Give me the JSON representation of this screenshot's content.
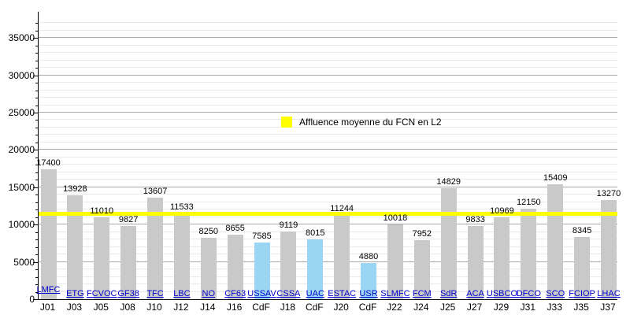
{
  "chart_data": {
    "type": "bar",
    "title": "",
    "xlabel": "",
    "ylabel": "",
    "ylim": [
      0,
      38500
    ],
    "y_major_step": 5000,
    "y_minor_step": 1000,
    "y_tick_labels": [
      "0",
      "5000",
      "10000",
      "15000",
      "20000",
      "25000",
      "30000",
      "35000"
    ],
    "grid": "major and minor horizontal gridlines",
    "legend": {
      "label": "Affluence moyenne du FCN en L2",
      "swatch_color": "#ffff00"
    },
    "average_line": {
      "value": 11439,
      "color": "#ffff00"
    },
    "colors": {
      "league_bar": "#c9c9c9",
      "cup_bar": "#9ad6f4",
      "team_link": "#0000cc",
      "value_text": "#000000",
      "major_grid": "#a8a8a8",
      "minor_grid": "#e9e9e9",
      "axis": "#000000"
    },
    "bars": [
      {
        "matchday": "J01",
        "opponent": "LMFC",
        "value": 17400,
        "competition": "league"
      },
      {
        "matchday": "J03",
        "opponent": "ETG",
        "value": 13928,
        "competition": "league"
      },
      {
        "matchday": "J05",
        "opponent": "FCVOC",
        "value": 11010,
        "competition": "league"
      },
      {
        "matchday": "J08",
        "opponent": "GF38",
        "value": 9827,
        "competition": "league"
      },
      {
        "matchday": "J10",
        "opponent": "TFC",
        "value": 13607,
        "competition": "league"
      },
      {
        "matchday": "J12",
        "opponent": "LBC",
        "value": 11533,
        "competition": "league"
      },
      {
        "matchday": "J14",
        "opponent": "NO",
        "value": 8250,
        "competition": "league"
      },
      {
        "matchday": "J16",
        "opponent": "CF63",
        "value": 8655,
        "competition": "league"
      },
      {
        "matchday": "CdF",
        "opponent": "USSAV",
        "value": 7585,
        "competition": "cup"
      },
      {
        "matchday": "J18",
        "opponent": "CSSA",
        "value": 9119,
        "competition": "league"
      },
      {
        "matchday": "CdF",
        "opponent": "UAC",
        "value": 8015,
        "competition": "cup"
      },
      {
        "matchday": "J20",
        "opponent": "ESTAC",
        "value": 11244,
        "competition": "league"
      },
      {
        "matchday": "CdF",
        "opponent": "USR",
        "value": 4880,
        "competition": "cup"
      },
      {
        "matchday": "J22",
        "opponent": "SLMFC",
        "value": 10018,
        "competition": "league"
      },
      {
        "matchday": "J24",
        "opponent": "FCM",
        "value": 7952,
        "competition": "league"
      },
      {
        "matchday": "J25",
        "opponent": "SdR",
        "value": 14829,
        "competition": "league"
      },
      {
        "matchday": "J27",
        "opponent": "ACA",
        "value": 9833,
        "competition": "league"
      },
      {
        "matchday": "J29",
        "opponent": "USBCO",
        "value": 10969,
        "competition": "league"
      },
      {
        "matchday": "J31",
        "opponent": "DFCO",
        "value": 12150,
        "competition": "league"
      },
      {
        "matchday": "J33",
        "opponent": "SCO",
        "value": 15409,
        "competition": "league"
      },
      {
        "matchday": "J35",
        "opponent": "FCIOP",
        "value": 8345,
        "competition": "league"
      },
      {
        "matchday": "J37",
        "opponent": "LHAC",
        "value": 13270,
        "competition": "league"
      }
    ]
  }
}
